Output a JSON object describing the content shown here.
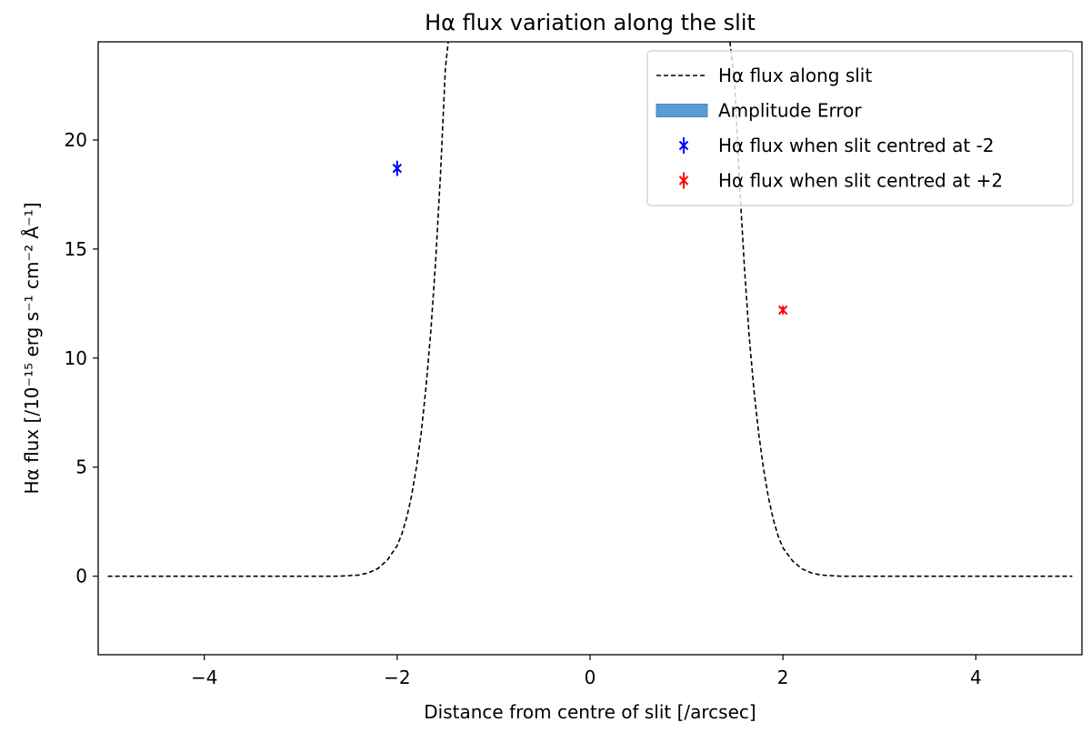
{
  "chart_data": {
    "type": "line",
    "title": "Hα flux variation along the slit",
    "xlabel": "Distance from centre of slit [/arcsec]",
    "ylabel": "Hα flux [/10⁻¹⁵ erg s⁻¹ cm⁻² Å⁻¹]",
    "xlim": [
      -5.1,
      5.1
    ],
    "ylim": [
      -3.6,
      24.5
    ],
    "xticks": [
      -4,
      -2,
      0,
      2,
      4
    ],
    "xtick_labels": [
      "−4",
      "−2",
      "0",
      "2",
      "4"
    ],
    "yticks": [
      0,
      5,
      10,
      15,
      20
    ],
    "ytick_labels": [
      "0",
      "5",
      "10",
      "15",
      "20"
    ],
    "grid": false,
    "legend_position": "top-right",
    "series": [
      {
        "name": "Hα flux along slit",
        "type": "line",
        "style": "dashed",
        "color": "#000000",
        "x": [
          -5.0,
          -3.0,
          -2.6,
          -2.4,
          -2.3,
          -2.2,
          -2.1,
          -2.0,
          -1.95,
          -1.9,
          -1.85,
          -1.8,
          -1.75,
          -1.7,
          -1.65,
          -1.6,
          -1.55,
          -1.5,
          -1.47,
          1.45,
          1.5,
          1.55,
          1.6,
          1.65,
          1.7,
          1.75,
          1.8,
          1.85,
          1.9,
          1.95,
          2.0,
          2.1,
          2.2,
          2.3,
          2.4,
          2.6,
          3.0,
          5.0
        ],
        "y": [
          0.0,
          0.0,
          0.0,
          0.05,
          0.15,
          0.35,
          0.75,
          1.4,
          1.95,
          2.7,
          3.7,
          5.0,
          6.6,
          8.7,
          11.3,
          14.5,
          18.5,
          23.3,
          24.5,
          24.5,
          22.6,
          18.0,
          14.2,
          11.0,
          8.5,
          6.5,
          4.9,
          3.6,
          2.6,
          1.85,
          1.3,
          0.7,
          0.33,
          0.14,
          0.05,
          0.0,
          0.0,
          0.0
        ]
      },
      {
        "name": "Amplitude Error",
        "type": "area",
        "color": "#5b9bd5"
      },
      {
        "name": "Hα flux when slit centred at -2",
        "type": "errorbar",
        "marker": "x",
        "color": "#0000ff",
        "x": [
          -2.0
        ],
        "y": [
          18.7
        ],
        "yerr": [
          0.35
        ]
      },
      {
        "name": "Hα flux when slit centred at +2",
        "type": "errorbar",
        "marker": "x",
        "color": "#ff0000",
        "x": [
          2.0
        ],
        "y": [
          12.2
        ],
        "yerr": [
          0.2
        ]
      }
    ]
  }
}
